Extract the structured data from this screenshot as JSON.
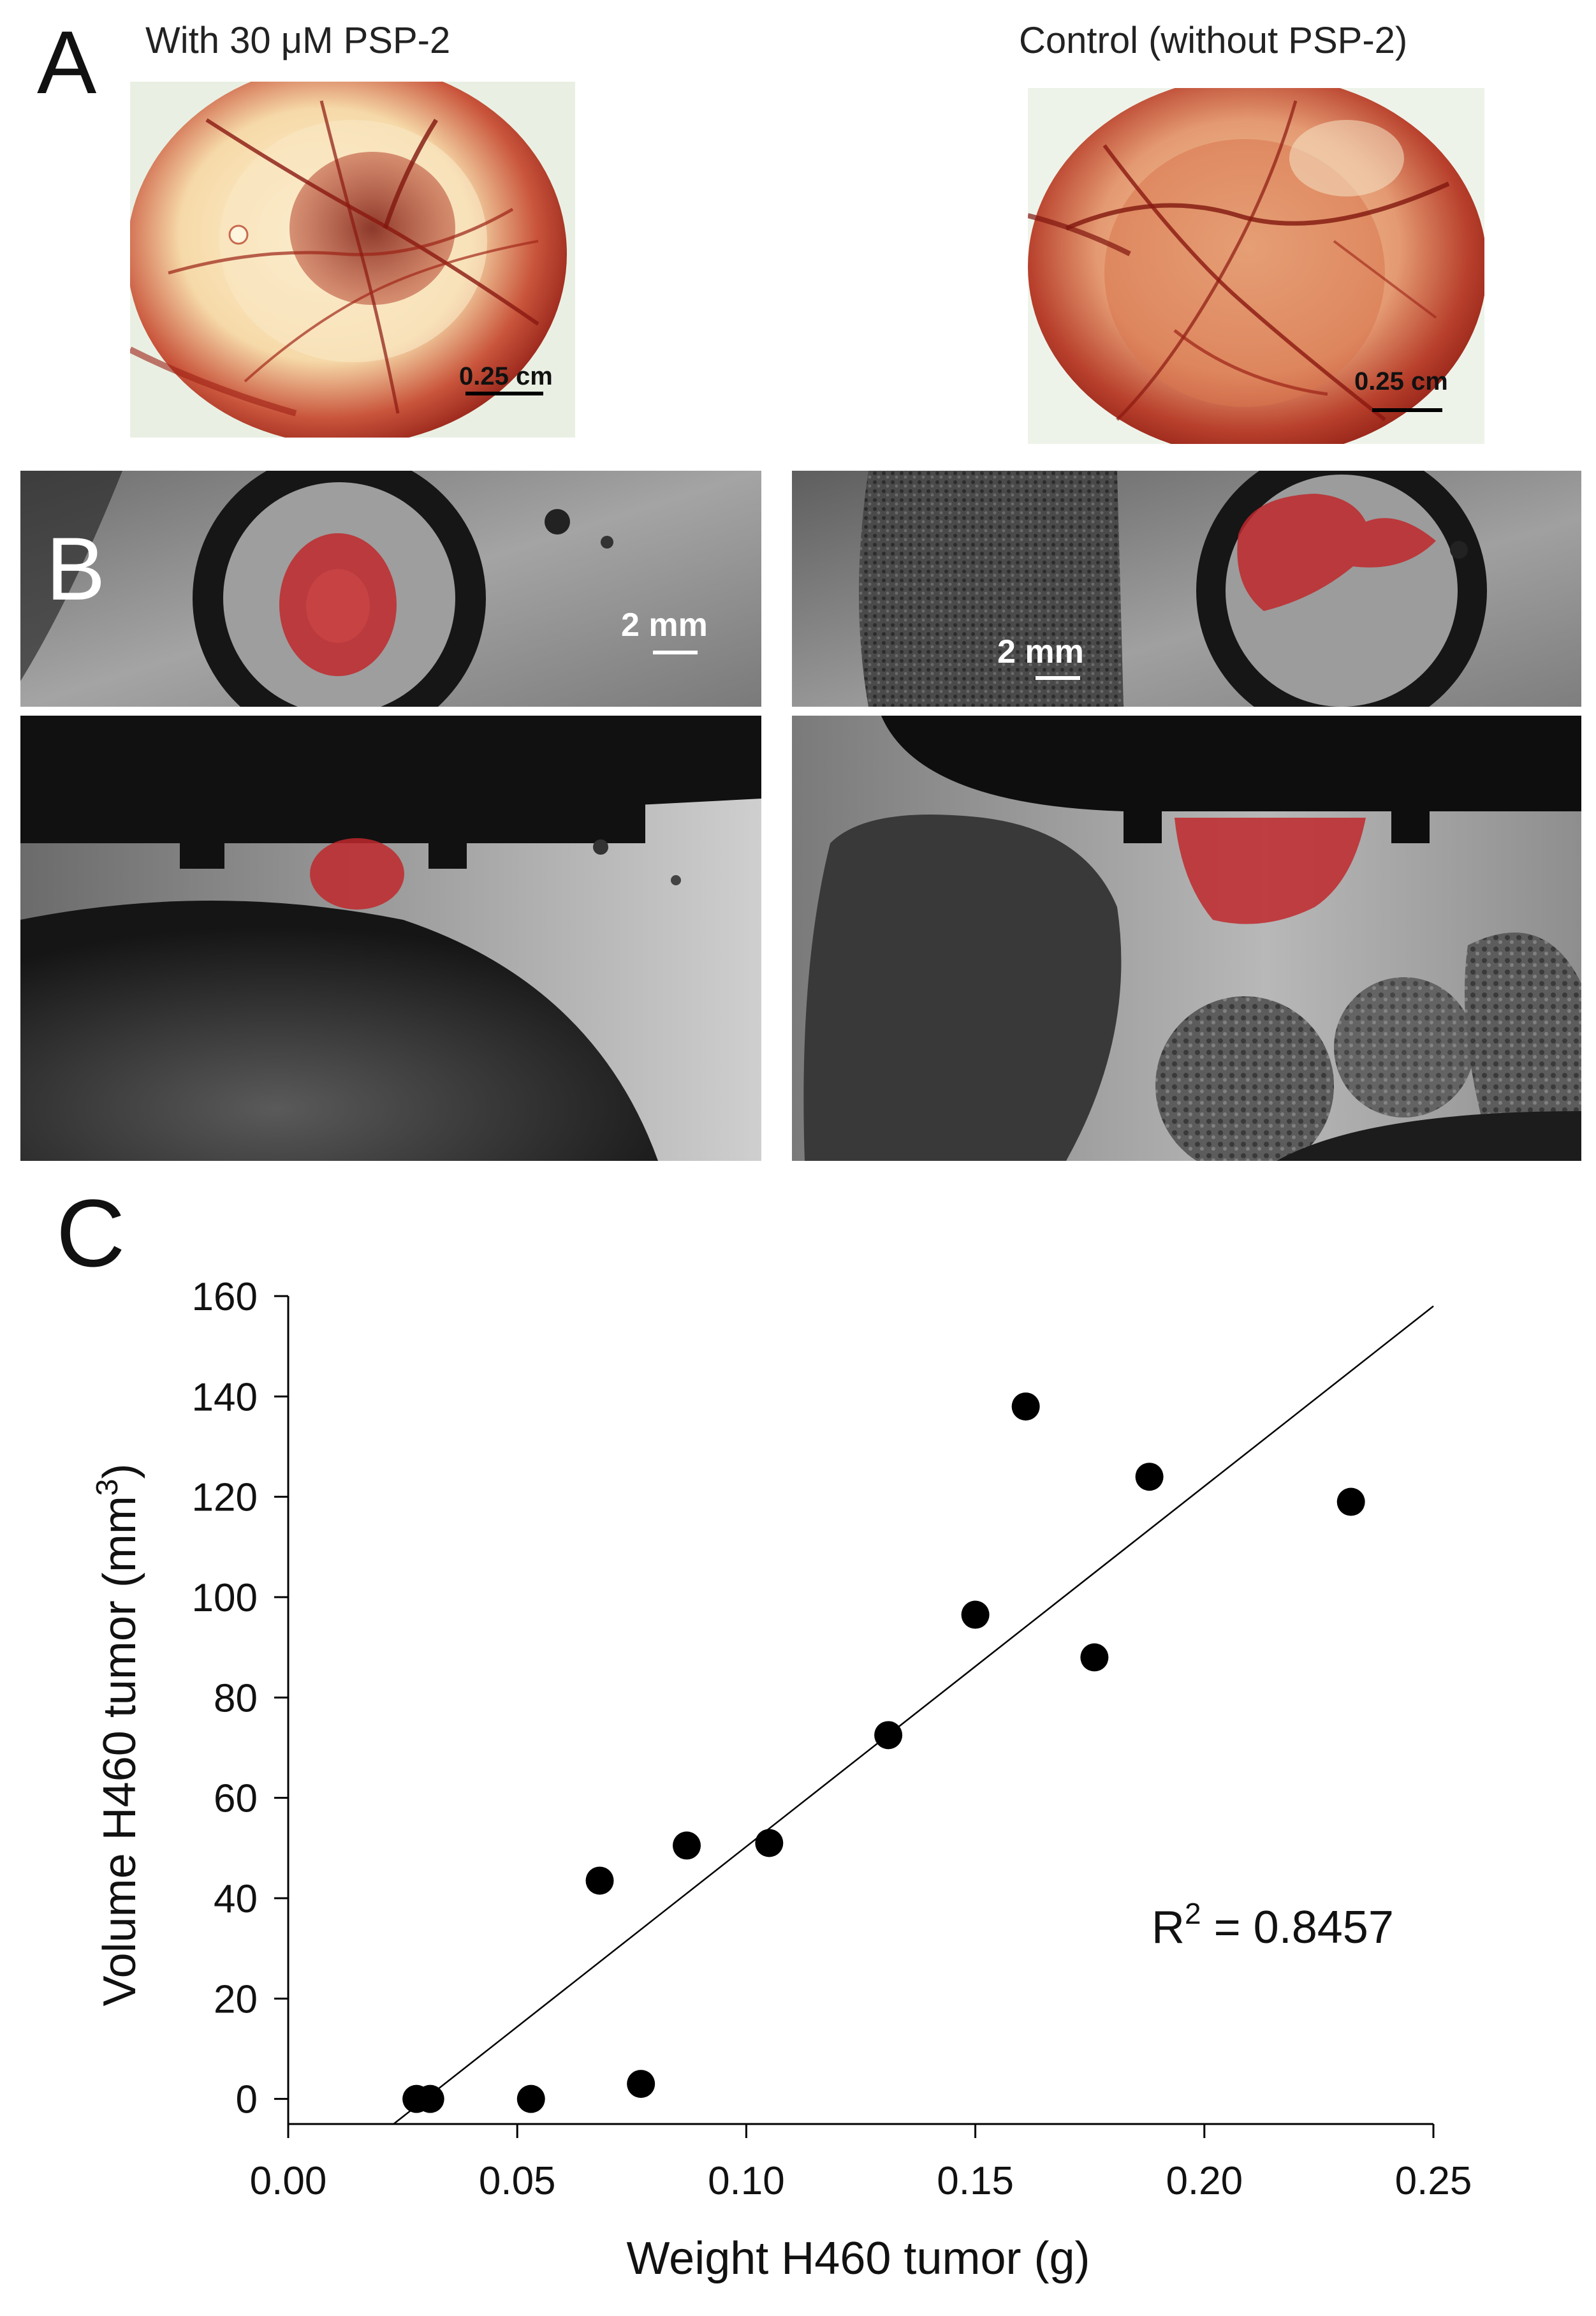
{
  "figure": {
    "panel_a": {
      "letter": "A",
      "left_caption": "With 30 μM PSP-2",
      "right_caption": "Control (without PSP-2)",
      "left_scale": "0.25 cm",
      "right_scale": "0.25 cm"
    },
    "panel_b": {
      "letter": "B",
      "left_scale": "2 mm",
      "right_scale": "2 mm"
    },
    "panel_c": {
      "letter": "C"
    }
  },
  "colors": {
    "tumor_overlay": "#c0282b",
    "tissue_red": "#a8231b",
    "marker": "#000000"
  },
  "chart_data": {
    "type": "scatter",
    "title": "",
    "xlabel": "Weight H460 tumor (g)",
    "ylabel_main": "Volume H460 tumor (mm",
    "ylabel_sup": "3",
    "ylabel_close": ")",
    "xlim": [
      0.0,
      0.25
    ],
    "ylim": [
      -5,
      160
    ],
    "x_ticks": [
      "0.00",
      "0.05",
      "0.10",
      "0.15",
      "0.20",
      "0.25"
    ],
    "y_ticks": [
      "0",
      "20",
      "40",
      "60",
      "80",
      "100",
      "120",
      "140",
      "160"
    ],
    "points": [
      {
        "x": 0.028,
        "y": 0
      },
      {
        "x": 0.031,
        "y": 0
      },
      {
        "x": 0.053,
        "y": 0
      },
      {
        "x": 0.068,
        "y": 43.5
      },
      {
        "x": 0.077,
        "y": 3
      },
      {
        "x": 0.087,
        "y": 50.5
      },
      {
        "x": 0.105,
        "y": 51
      },
      {
        "x": 0.131,
        "y": 72.5
      },
      {
        "x": 0.15,
        "y": 96.5
      },
      {
        "x": 0.161,
        "y": 138
      },
      {
        "x": 0.176,
        "y": 88
      },
      {
        "x": 0.188,
        "y": 124
      },
      {
        "x": 0.232,
        "y": 119
      }
    ],
    "trendline": {
      "x": [
        0.023,
        0.25
      ],
      "y": [
        -5,
        158
      ]
    },
    "annotation": {
      "r_base": "R",
      "r_sup": "2",
      "r_value": " = 0.8457"
    },
    "grid": false,
    "legend": "none"
  }
}
